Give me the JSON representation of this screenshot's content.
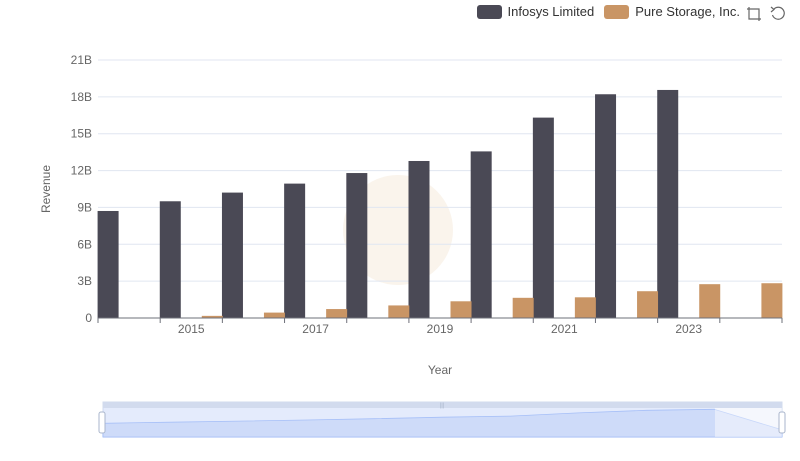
{
  "legend": [
    {
      "name": "Infosys Limited",
      "color": "#4a4955"
    },
    {
      "name": "Pure Storage, Inc.",
      "color": "#c99565"
    }
  ],
  "toolbox": {
    "zoom_icon": "data-zoom-icon",
    "restore_icon": "restore-icon"
  },
  "chart_data": {
    "type": "bar",
    "x": [
      2014,
      2015,
      2016,
      2017,
      2018,
      2019,
      2020,
      2021,
      2022,
      2023,
      2024
    ],
    "xtick_labels": [
      "2015",
      "2017",
      "2019",
      "2021",
      "2023"
    ],
    "xlabel": "Year",
    "ylabel": "Revenue",
    "ylim": [
      0,
      21000000000
    ],
    "ytick_labels": [
      "0",
      "3B",
      "6B",
      "9B",
      "12B",
      "15B",
      "18B",
      "21B"
    ],
    "grid": true,
    "legend_position": "top-right",
    "series": [
      {
        "name": "Infosys Limited",
        "color": "#4a4955",
        "values": [
          8711000000,
          9501000000,
          10208000000,
          10939000000,
          11799000000,
          12780000000,
          13561000000,
          16311000000,
          18212000000,
          18562000000,
          null
        ]
      },
      {
        "name": "Pure Storage, Inc.",
        "color": "#c99565",
        "values": [
          null,
          174000000,
          440000000,
          728000000,
          1023000000,
          1360000000,
          1643000000,
          1684000000,
          2180000000,
          2753000000,
          2830000000
        ]
      }
    ]
  }
}
